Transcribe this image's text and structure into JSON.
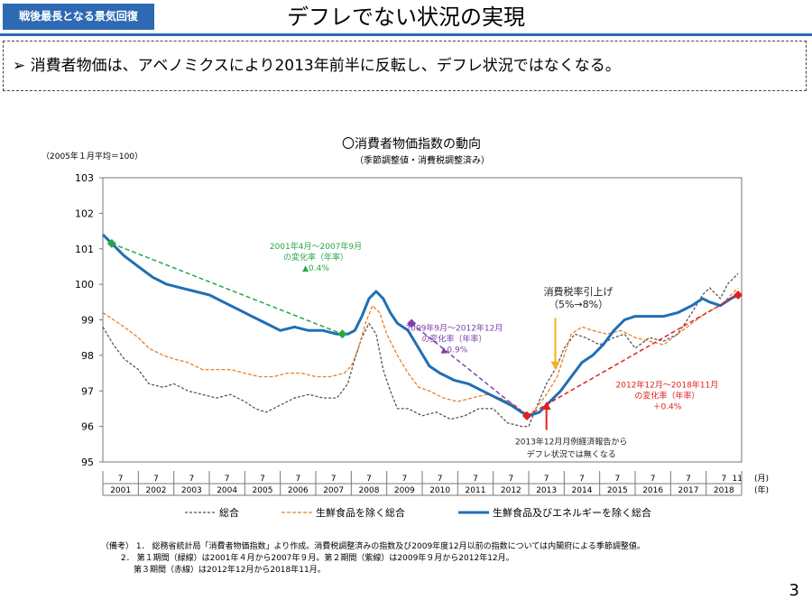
{
  "header": {
    "badge": "戦後最長となる景気回復",
    "title": "デフレでない状況の実現"
  },
  "summary": {
    "marker": "➢",
    "text": "消費者物価は、アベノミクスにより2013年前半に反転し、デフレ状況ではなくなる。"
  },
  "page_number": "3",
  "notes": {
    "line1": "（備考） 1． 総務省統計局「消費者物価指数」より作成。消費税調整済みの指数及び2009年度12月以前の指数については内閣府による季節調整値。",
    "line2": "2． 第１期間（緑線）は2001年４月から2007年９月。第２期間（紫線）は2009年９月から2012年12月。",
    "line3": "第３期間（赤線）は2012年12月から2018年11月。"
  },
  "colors": {
    "accent": "#2e6ab3",
    "overall": "#555555",
    "ex_fresh": "#e8802a",
    "ex_fresh_energy": "#1f6fb5",
    "period1": "#28a745",
    "period2": "#7b3fb0",
    "period3": "#e02020",
    "tax_arrow": "#f2b21b"
  },
  "chart_data": {
    "type": "line",
    "title": "〇消費者物価指数の動向",
    "subtitle": "（季節調整値・消費税調整済み）",
    "unit_label": "（2005年１月平均＝100）",
    "xunit_month": "(月)",
    "xunit_year": "(年)",
    "ylim": [
      95,
      103
    ],
    "yticks": [
      95,
      96,
      97,
      98,
      99,
      100,
      101,
      102,
      103
    ],
    "xlim": [
      2001.0,
      2019.0
    ],
    "month_tick": "7",
    "month_tick_last": "11",
    "years": [
      "2001",
      "2002",
      "2003",
      "2004",
      "2005",
      "2006",
      "2007",
      "2008",
      "2009",
      "2010",
      "2011",
      "2012",
      "2013",
      "2014",
      "2015",
      "2016",
      "2017",
      "2018"
    ],
    "series": [
      {
        "name": "総合",
        "style": "dashed",
        "points": [
          [
            2001.0,
            98.8
          ],
          [
            2001.3,
            98.3
          ],
          [
            2001.6,
            97.9
          ],
          [
            2002.0,
            97.6
          ],
          [
            2002.3,
            97.2
          ],
          [
            2002.7,
            97.1
          ],
          [
            2003.0,
            97.2
          ],
          [
            2003.4,
            97.0
          ],
          [
            2003.8,
            96.9
          ],
          [
            2004.2,
            96.8
          ],
          [
            2004.6,
            96.9
          ],
          [
            2005.0,
            96.7
          ],
          [
            2005.3,
            96.5
          ],
          [
            2005.6,
            96.4
          ],
          [
            2006.0,
            96.6
          ],
          [
            2006.4,
            96.8
          ],
          [
            2006.8,
            96.9
          ],
          [
            2007.2,
            96.8
          ],
          [
            2007.6,
            96.8
          ],
          [
            2007.9,
            97.2
          ],
          [
            2008.1,
            97.9
          ],
          [
            2008.3,
            98.5
          ],
          [
            2008.5,
            98.9
          ],
          [
            2008.7,
            98.6
          ],
          [
            2008.9,
            97.6
          ],
          [
            2009.1,
            97.0
          ],
          [
            2009.3,
            96.5
          ],
          [
            2009.6,
            96.5
          ],
          [
            2010.0,
            96.3
          ],
          [
            2010.4,
            96.4
          ],
          [
            2010.8,
            96.2
          ],
          [
            2011.2,
            96.3
          ],
          [
            2011.6,
            96.5
          ],
          [
            2012.0,
            96.5
          ],
          [
            2012.4,
            96.1
          ],
          [
            2012.8,
            96.0
          ],
          [
            2013.0,
            96.0
          ],
          [
            2013.2,
            96.5
          ],
          [
            2013.5,
            97.2
          ],
          [
            2013.8,
            97.7
          ],
          [
            2014.0,
            98.2
          ],
          [
            2014.3,
            98.6
          ],
          [
            2014.6,
            98.5
          ],
          [
            2015.0,
            98.3
          ],
          [
            2015.4,
            98.5
          ],
          [
            2015.7,
            98.6
          ],
          [
            2016.0,
            98.2
          ],
          [
            2016.4,
            98.5
          ],
          [
            2016.8,
            98.4
          ],
          [
            2017.2,
            98.6
          ],
          [
            2017.6,
            99.2
          ],
          [
            2017.9,
            99.7
          ],
          [
            2018.1,
            99.9
          ],
          [
            2018.4,
            99.6
          ],
          [
            2018.6,
            100.0
          ],
          [
            2018.8,
            100.2
          ],
          [
            2018.9,
            100.3
          ]
        ]
      },
      {
        "name": "生鮮食品を除く総合",
        "style": "dashed",
        "points": [
          [
            2001.0,
            99.2
          ],
          [
            2001.3,
            99.0
          ],
          [
            2001.6,
            98.8
          ],
          [
            2002.0,
            98.5
          ],
          [
            2002.3,
            98.2
          ],
          [
            2002.7,
            98.0
          ],
          [
            2003.0,
            97.9
          ],
          [
            2003.4,
            97.8
          ],
          [
            2003.8,
            97.6
          ],
          [
            2004.2,
            97.6
          ],
          [
            2004.6,
            97.6
          ],
          [
            2005.0,
            97.5
          ],
          [
            2005.4,
            97.4
          ],
          [
            2005.8,
            97.4
          ],
          [
            2006.2,
            97.5
          ],
          [
            2006.6,
            97.5
          ],
          [
            2007.0,
            97.4
          ],
          [
            2007.4,
            97.4
          ],
          [
            2007.8,
            97.5
          ],
          [
            2008.0,
            97.7
          ],
          [
            2008.2,
            98.2
          ],
          [
            2008.4,
            98.9
          ],
          [
            2008.6,
            99.4
          ],
          [
            2008.8,
            99.2
          ],
          [
            2009.0,
            98.6
          ],
          [
            2009.3,
            98.0
          ],
          [
            2009.6,
            97.5
          ],
          [
            2009.9,
            97.1
          ],
          [
            2010.2,
            97.0
          ],
          [
            2010.6,
            96.8
          ],
          [
            2011.0,
            96.7
          ],
          [
            2011.4,
            96.8
          ],
          [
            2011.8,
            96.9
          ],
          [
            2012.2,
            96.8
          ],
          [
            2012.6,
            96.6
          ],
          [
            2013.0,
            96.3
          ],
          [
            2013.2,
            96.5
          ],
          [
            2013.5,
            96.9
          ],
          [
            2013.8,
            97.4
          ],
          [
            2014.0,
            98.0
          ],
          [
            2014.2,
            98.6
          ],
          [
            2014.5,
            98.8
          ],
          [
            2014.8,
            98.7
          ],
          [
            2015.2,
            98.6
          ],
          [
            2015.6,
            98.7
          ],
          [
            2016.0,
            98.5
          ],
          [
            2016.4,
            98.4
          ],
          [
            2016.8,
            98.3
          ],
          [
            2017.2,
            98.6
          ],
          [
            2017.6,
            98.9
          ],
          [
            2018.0,
            99.2
          ],
          [
            2018.4,
            99.4
          ],
          [
            2018.7,
            99.7
          ],
          [
            2018.9,
            99.9
          ]
        ]
      },
      {
        "name": "生鮮食品及びエネルギーを除く総合",
        "style": "solid",
        "points": [
          [
            2001.0,
            101.4
          ],
          [
            2001.3,
            101.1
          ],
          [
            2001.6,
            100.8
          ],
          [
            2002.0,
            100.5
          ],
          [
            2002.4,
            100.2
          ],
          [
            2002.8,
            100.0
          ],
          [
            2003.2,
            99.9
          ],
          [
            2003.6,
            99.8
          ],
          [
            2004.0,
            99.7
          ],
          [
            2004.4,
            99.5
          ],
          [
            2004.8,
            99.3
          ],
          [
            2005.2,
            99.1
          ],
          [
            2005.6,
            98.9
          ],
          [
            2006.0,
            98.7
          ],
          [
            2006.4,
            98.8
          ],
          [
            2006.8,
            98.7
          ],
          [
            2007.2,
            98.7
          ],
          [
            2007.6,
            98.6
          ],
          [
            2007.9,
            98.6
          ],
          [
            2008.1,
            98.7
          ],
          [
            2008.3,
            99.1
          ],
          [
            2008.5,
            99.6
          ],
          [
            2008.7,
            99.8
          ],
          [
            2008.9,
            99.6
          ],
          [
            2009.1,
            99.2
          ],
          [
            2009.3,
            98.9
          ],
          [
            2009.6,
            98.7
          ],
          [
            2009.9,
            98.2
          ],
          [
            2010.2,
            97.7
          ],
          [
            2010.5,
            97.5
          ],
          [
            2010.9,
            97.3
          ],
          [
            2011.3,
            97.2
          ],
          [
            2011.7,
            97.0
          ],
          [
            2012.1,
            96.8
          ],
          [
            2012.5,
            96.6
          ],
          [
            2012.8,
            96.4
          ],
          [
            2013.0,
            96.3
          ],
          [
            2013.3,
            96.4
          ],
          [
            2013.6,
            96.7
          ],
          [
            2013.9,
            97.0
          ],
          [
            2014.2,
            97.4
          ],
          [
            2014.5,
            97.8
          ],
          [
            2014.8,
            98.0
          ],
          [
            2015.1,
            98.3
          ],
          [
            2015.4,
            98.7
          ],
          [
            2015.7,
            99.0
          ],
          [
            2016.0,
            99.1
          ],
          [
            2016.4,
            99.1
          ],
          [
            2016.8,
            99.1
          ],
          [
            2017.2,
            99.2
          ],
          [
            2017.6,
            99.4
          ],
          [
            2017.9,
            99.6
          ],
          [
            2018.1,
            99.5
          ],
          [
            2018.4,
            99.4
          ],
          [
            2018.7,
            99.6
          ],
          [
            2018.9,
            99.7
          ]
        ]
      }
    ],
    "periods": [
      {
        "name": "第１期間",
        "color_key": "period1",
        "from": [
          2001.25,
          101.15
        ],
        "to": [
          2007.75,
          98.6
        ],
        "label": [
          "2001年4月～2007年9月",
          "の変化率（年率）",
          "▲0.4%"
        ],
        "label_at": [
          2007.0,
          101.0
        ]
      },
      {
        "name": "第２期間",
        "color_key": "period2",
        "from": [
          2009.7,
          98.9
        ],
        "to": [
          2012.95,
          96.3
        ],
        "label": [
          "2009年9月～2012年12月",
          "の変化率（年率）",
          "▲0.9%"
        ],
        "label_at": [
          2010.9,
          98.7
        ]
      },
      {
        "name": "第３期間",
        "color_key": "period3",
        "from": [
          2012.95,
          96.3
        ],
        "to": [
          2018.9,
          99.7
        ],
        "label": [
          "2012年12月～2018年11月",
          "の変化率（年率）",
          "＋0.4%"
        ],
        "label_at": [
          2016.9,
          97.1
        ]
      }
    ],
    "annotations": [
      {
        "text": [
          "消費税率引上げ",
          "（5%→8%）"
        ],
        "label_at": [
          2014.4,
          99.7
        ],
        "arrow_from": [
          2013.75,
          99.05
        ],
        "arrow_to": [
          2013.75,
          97.6
        ],
        "color_key": "tax_arrow"
      },
      {
        "text": [
          "2013年12月月例経済報告から",
          "デフレ状況では無くなる"
        ],
        "label_at": [
          2014.2,
          95.5
        ],
        "arrow_from": [
          2013.5,
          95.9
        ],
        "arrow_to": [
          2013.5,
          96.7
        ],
        "color_key": "period3"
      }
    ]
  }
}
